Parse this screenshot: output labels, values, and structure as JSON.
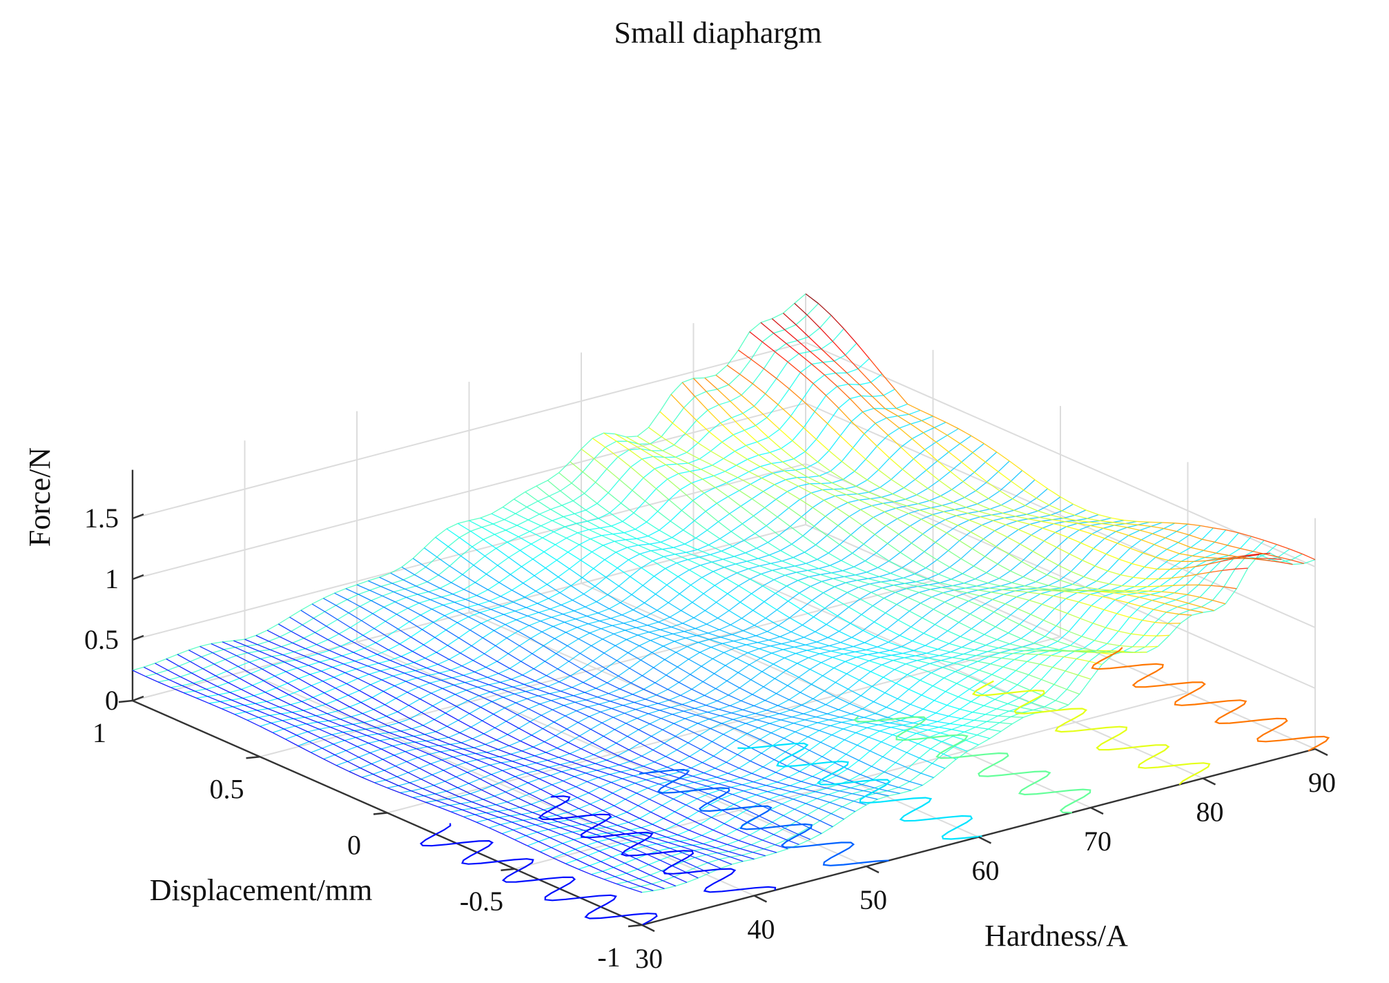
{
  "chart_data": {
    "type": "surface",
    "render": "3d-mesh",
    "title": "Small diaphargm",
    "xlabel": "Hardness/A",
    "ylabel": "Displacement/mm",
    "zlabel": "Force/N",
    "xlim": [
      30,
      90
    ],
    "ylim": [
      -1,
      1
    ],
    "zlim": [
      0,
      1.9
    ],
    "xticks": [
      "30",
      "40",
      "50",
      "60",
      "70",
      "80",
      "90"
    ],
    "yticks": [
      "-1",
      "-0.5",
      "0",
      "0.5",
      "1"
    ],
    "zticks": [
      "0",
      "0.5",
      "1",
      "1.5"
    ],
    "grid": true,
    "colormap": "jet",
    "hardness_samples": [
      30,
      40,
      50,
      60,
      70,
      80,
      90
    ],
    "displacement_samples": [
      -1,
      -0.5,
      0,
      0.5,
      1
    ],
    "force_peak": [
      1.9,
      1.55
    ],
    "force_center": [
      0.22,
      0.22,
      0.35,
      0.55,
      0.75,
      0.95,
      1.2
    ]
  }
}
